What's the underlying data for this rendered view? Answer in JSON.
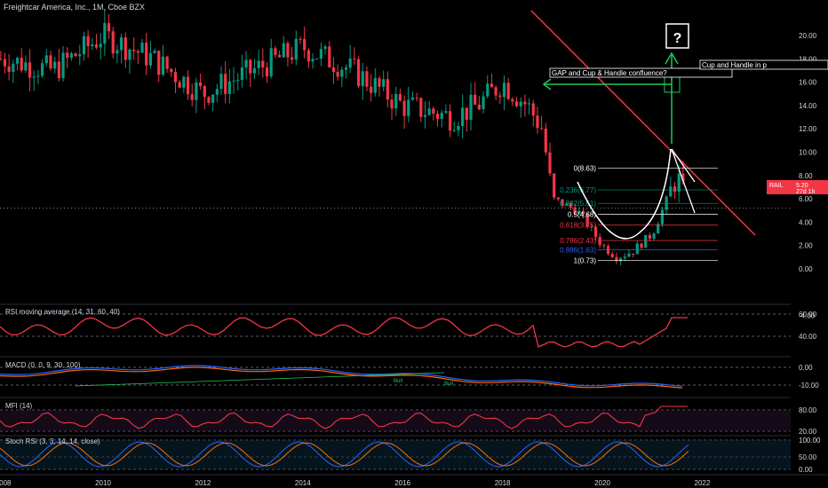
{
  "header": {
    "title": "Freightcar America, Inc., 1M, Cboe BZX"
  },
  "price_badge": {
    "symbol": "RAIL",
    "price": "5.20",
    "countdown": "27d 1h",
    "color": "#f23645"
  },
  "colors": {
    "up": "#089981",
    "down": "#f23645",
    "trendline": "#f23645",
    "arrow": "#22c55e",
    "cup": "#ffffff",
    "rsi": "#f23645",
    "macd": "#2962ff",
    "signal": "#ff6d00",
    "stoch_k": "#2962ff",
    "stoch_d": "#ff6d00"
  },
  "annotations": {
    "gap_label": "GAP and Cup & Handle confluence?",
    "cup_label": "Cup and Handle in p",
    "question": "?",
    "bull1": "Bull",
    "bull2": "Bull"
  },
  "fib_levels": [
    {
      "label": "0(8.63)",
      "color": "#ffffff"
    },
    {
      "label": "0.236(6.77)",
      "color": "#089981"
    },
    {
      "label": "0.382(5.61)",
      "color": "#089981"
    },
    {
      "label": "0.5(4.68)",
      "color": "#ffffff"
    },
    {
      "label": "0.618(3.75)",
      "color": "#f23645"
    },
    {
      "label": "0.786(2.43)",
      "color": "#f23645"
    },
    {
      "label": "0.886(1.63)",
      "color": "#2962ff"
    },
    {
      "label": "1(0.73)",
      "color": "#ffffff"
    }
  ],
  "indicators": {
    "rsi": {
      "label": "RSI moving average (14, 31, 60, 40)",
      "ticks": [
        "60.00",
        "40.00"
      ]
    },
    "macd": {
      "label": "MACD (0, 0, 9, 30, 100)",
      "ticks": [
        "0.00",
        "-10.00"
      ]
    },
    "mfi": {
      "label": "MFI (14)",
      "ticks": [
        "80.00",
        "20.00"
      ]
    },
    "stoch": {
      "label": "Stoch RSI (3, 3, 14, 14, close)",
      "ticks": [
        "100.00",
        "50.00",
        "0.00"
      ]
    }
  },
  "chart_data": {
    "type": "candlestick",
    "title": "Freightcar America, Inc., 1M, Cboe BZX",
    "x_ticks": [
      "2008",
      "2010",
      "2012",
      "2014",
      "2016",
      "2018",
      "2020",
      "2022"
    ],
    "y_ticks": [
      "20.00",
      "18.00",
      "16.00",
      "14.00",
      "12.00",
      "10.00",
      "8.00",
      "6.00",
      "4.00",
      "2.00",
      "0.00",
      "-4.00"
    ],
    "ylim": [
      -4,
      21
    ],
    "series": [
      {
        "name": "close_approx",
        "x": [
          2008.0,
          2009.0,
          2010.0,
          2011.0,
          2012.0,
          2013.0,
          2014.0,
          2015.0,
          2016.0,
          2017.0,
          2017.5,
          2018.0,
          2018.5,
          2018.8,
          2019.0,
          2019.5,
          2020.0,
          2020.3,
          2020.6,
          2021.0,
          2021.3,
          2021.5,
          2021.7
        ],
        "values": [
          18.0,
          17.0,
          20.0,
          18.0,
          15.0,
          17.0,
          19.0,
          17.0,
          14.0,
          13.0,
          14.0,
          16.0,
          14.0,
          12.0,
          6.0,
          5.0,
          2.0,
          1.0,
          1.5,
          3.0,
          6.0,
          8.0,
          5.2
        ]
      }
    ],
    "fib_retracement": [
      8.63,
      6.77,
      5.61,
      4.68,
      3.75,
      2.43,
      1.63,
      0.73
    ]
  }
}
